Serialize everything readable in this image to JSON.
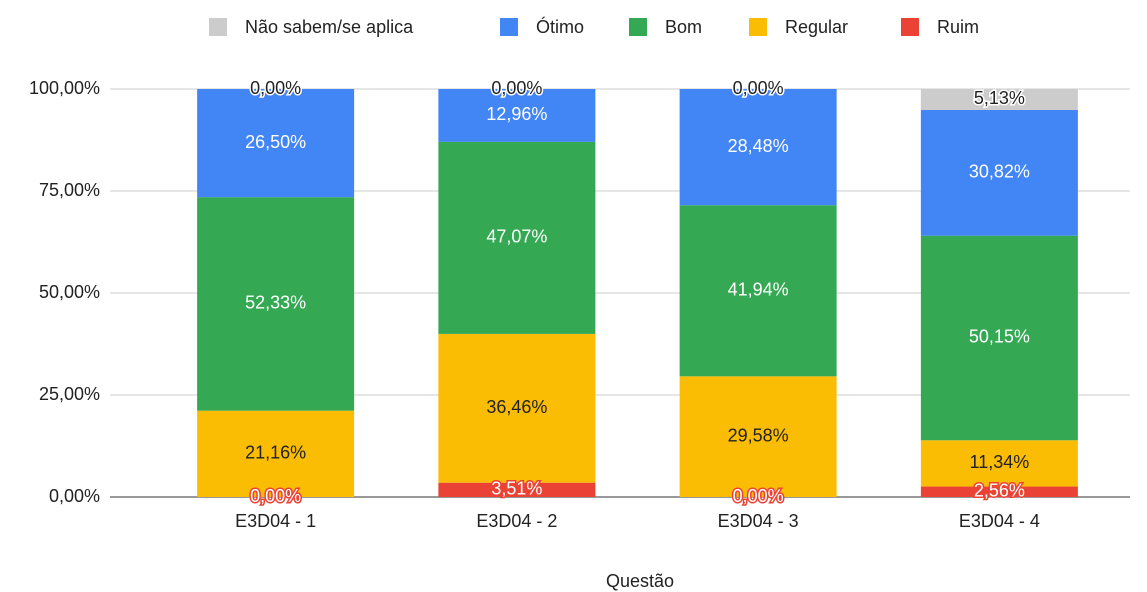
{
  "chart_data": {
    "type": "stacked_bar",
    "x_label": "Questão",
    "categories": [
      "E3D04 - 1",
      "E3D04 - 2",
      "E3D04 - 3",
      "E3D04 - 4"
    ],
    "series": [
      {
        "name": "Não sabem/se aplica",
        "color": "#cccccc",
        "values": [
          0,
          0,
          0,
          5.13
        ],
        "value_labels": [
          "0,00%",
          "0,00%",
          "0,00%",
          "5,13%"
        ]
      },
      {
        "name": "Ótimo",
        "color": "#4285f4",
        "values": [
          26.5,
          12.96,
          28.48,
          30.82
        ],
        "value_labels": [
          "26,50%",
          "12,96%",
          "28,48%",
          "30,82%"
        ]
      },
      {
        "name": "Bom",
        "color": "#34a853",
        "values": [
          52.33,
          47.07,
          41.94,
          50.15
        ],
        "value_labels": [
          "52,33%",
          "47,07%",
          "41,94%",
          "50,15%"
        ]
      },
      {
        "name": "Regular",
        "color": "#fbbc04",
        "values": [
          21.16,
          36.46,
          29.58,
          11.34
        ],
        "value_labels": [
          "21,16%",
          "36,46%",
          "29,58%",
          "11,34%"
        ]
      },
      {
        "name": "Ruim",
        "color": "#ea4335",
        "values": [
          0,
          3.51,
          0,
          2.56
        ],
        "value_labels": [
          "0,00%",
          "3,51%",
          "0,00%",
          "2,56%"
        ]
      }
    ],
    "ylim": [
      0,
      100
    ],
    "yticks": [
      {
        "value": 0,
        "label": "0,00%"
      },
      {
        "value": 25,
        "label": "25,00%"
      },
      {
        "value": 50,
        "label": "50,00%"
      },
      {
        "value": 75,
        "label": "75,00%"
      },
      {
        "value": 100,
        "label": "100,00%"
      }
    ],
    "grid": true,
    "legend": "top"
  }
}
